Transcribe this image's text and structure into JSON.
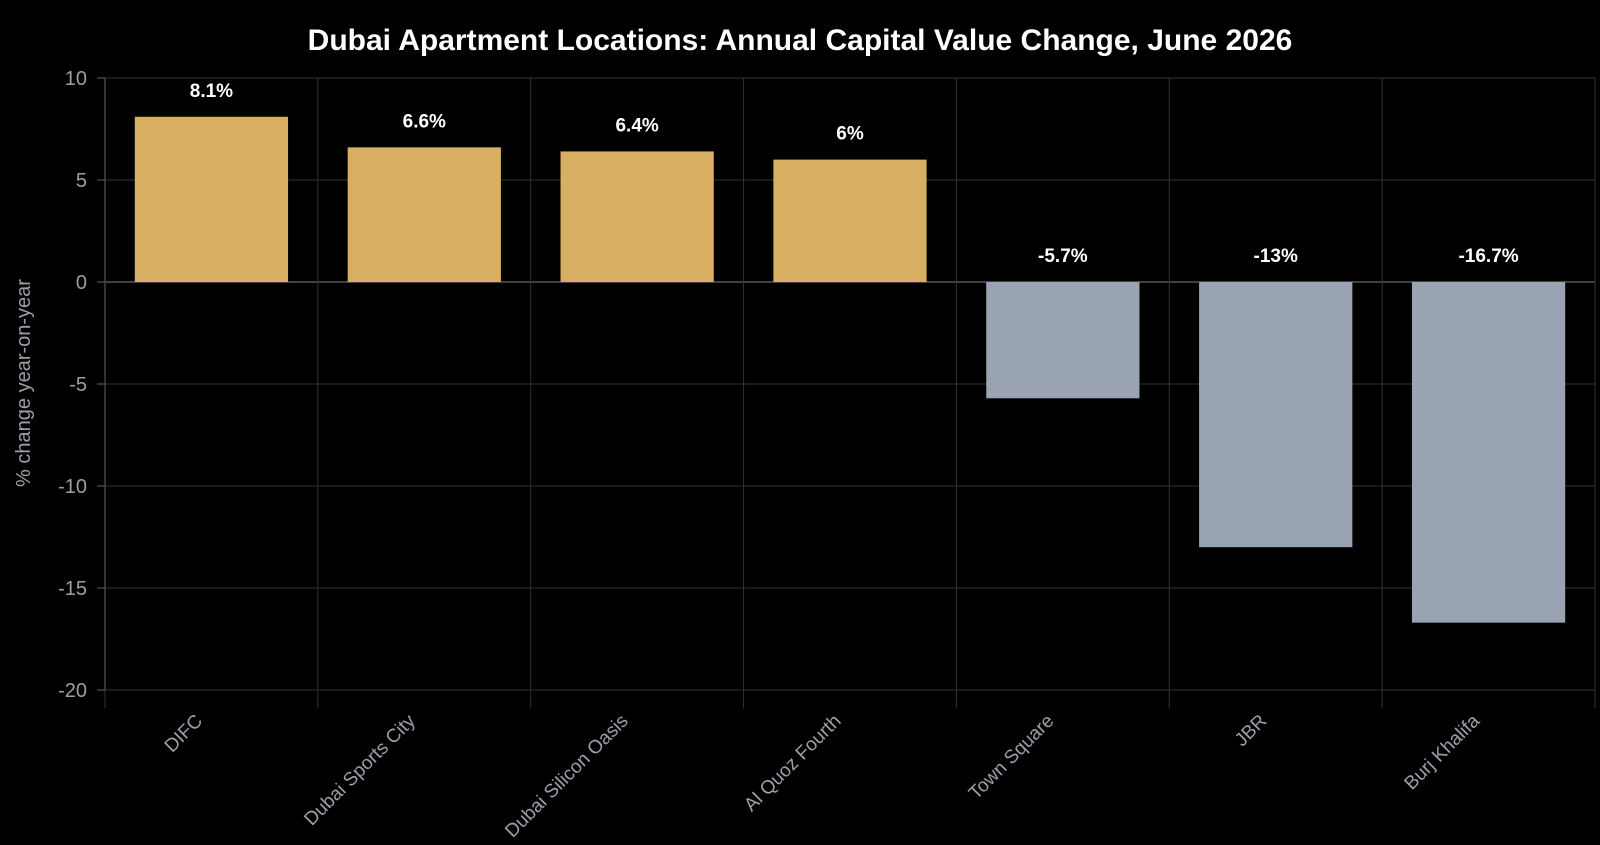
{
  "chart_data": {
    "type": "bar",
    "title": "Dubai Apartment Locations: Annual Capital Value Change, June 2026",
    "xlabel": "",
    "ylabel": "% change year-on-year",
    "categories": [
      "DIFC",
      "Dubai Sports City",
      "Dubai Silicon Oasis",
      "Al Quoz Fourth",
      "Town Square",
      "JBR",
      "Burj Khalifa"
    ],
    "values": [
      8.1,
      6.6,
      6.4,
      6.0,
      -5.7,
      -13.0,
      -16.7
    ],
    "data_labels": [
      "8.1%",
      "6.6%",
      "6.4%",
      "6%",
      "-5.7%",
      "-13%",
      "-16.7%"
    ],
    "ylim": [
      -20,
      10
    ],
    "yticks": [
      10,
      5,
      0,
      -5,
      -10,
      -15,
      -20
    ],
    "grid": true,
    "legend": "none",
    "colors": {
      "positive": "#d8ae62",
      "negative": "#9aa3b2",
      "background": "#000000"
    }
  }
}
